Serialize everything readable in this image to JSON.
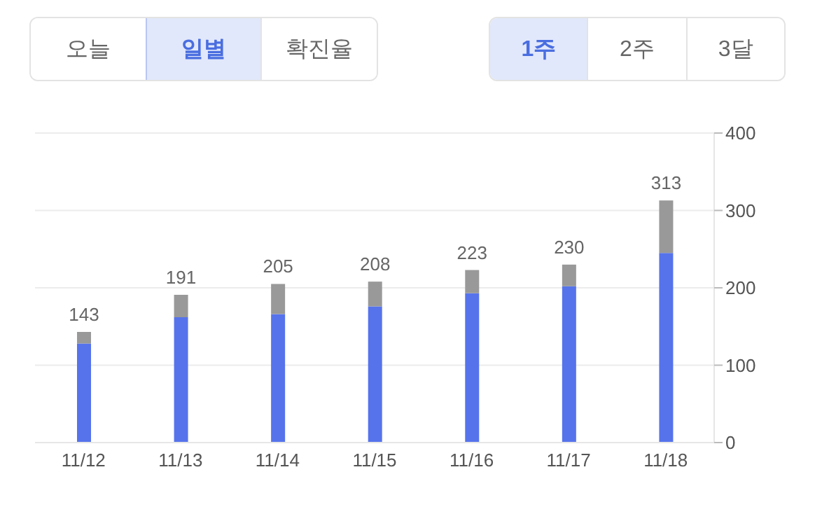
{
  "chart_data": {
    "type": "bar",
    "stacked": true,
    "categories": [
      "11/12",
      "11/13",
      "11/14",
      "11/15",
      "11/16",
      "11/17",
      "11/18"
    ],
    "series": [
      {
        "color": "#5673ec",
        "values": [
          128,
          162,
          166,
          176,
          193,
          202,
          245
        ]
      },
      {
        "color": "#999999",
        "values": [
          15,
          29,
          39,
          32,
          30,
          28,
          68
        ]
      }
    ],
    "totals": [
      "143",
      "191",
      "205",
      "208",
      "223",
      "230",
      "313"
    ],
    "ylim": [
      0,
      400
    ],
    "yticks": [
      0,
      100,
      200,
      300,
      400
    ],
    "grid": "y",
    "legend": false,
    "annotations": [
      "오늘",
      "일별",
      "확진율",
      "1주",
      "2주",
      "3달"
    ]
  }
}
